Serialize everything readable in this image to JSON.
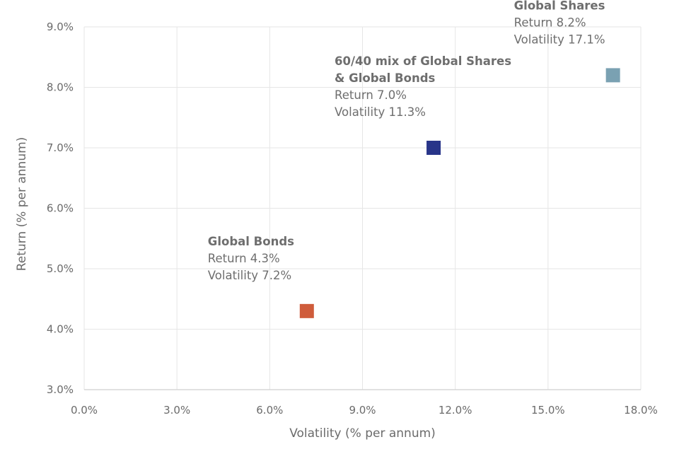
{
  "chart_data": {
    "type": "scatter",
    "title": "",
    "xlabel": "Volatility (% per annum)",
    "ylabel": "Return (% per annum)",
    "xlim": [
      0,
      18
    ],
    "ylim": [
      3,
      9
    ],
    "x_ticks": [
      0,
      3,
      6,
      9,
      12,
      15,
      18
    ],
    "y_ticks": [
      3,
      4,
      5,
      6,
      7,
      8,
      9
    ],
    "x_tick_labels": [
      "0.0%",
      "3.0%",
      "6.0%",
      "9.0%",
      "12.0%",
      "15.0%",
      "18.0%"
    ],
    "y_tick_labels": [
      "3.0%",
      "4.0%",
      "5.0%",
      "6.0%",
      "7.0%",
      "8.0%",
      "9.0%"
    ],
    "grid": true,
    "marker": "square",
    "points": [
      {
        "id": "global-bonds",
        "x": 7.2,
        "y": 4.3,
        "color": "#cf5c3b",
        "title_lines": [
          "Global Bonds"
        ],
        "return_text": "Return 4.3%",
        "volatility_text": "Volatility 7.2%"
      },
      {
        "id": "mix-60-40",
        "x": 11.3,
        "y": 7.0,
        "color": "#283589",
        "title_lines": [
          "60/40 mix of Global Shares",
          "& Global Bonds"
        ],
        "return_text": "Return 7.0%",
        "volatility_text": "Volatility 11.3%"
      },
      {
        "id": "global-shares",
        "x": 17.1,
        "y": 8.2,
        "color": "#7aa1b2",
        "title_lines": [
          "Global Shares"
        ],
        "return_text": "Return 8.2%",
        "volatility_text": "Volatility 17.1%"
      }
    ]
  }
}
